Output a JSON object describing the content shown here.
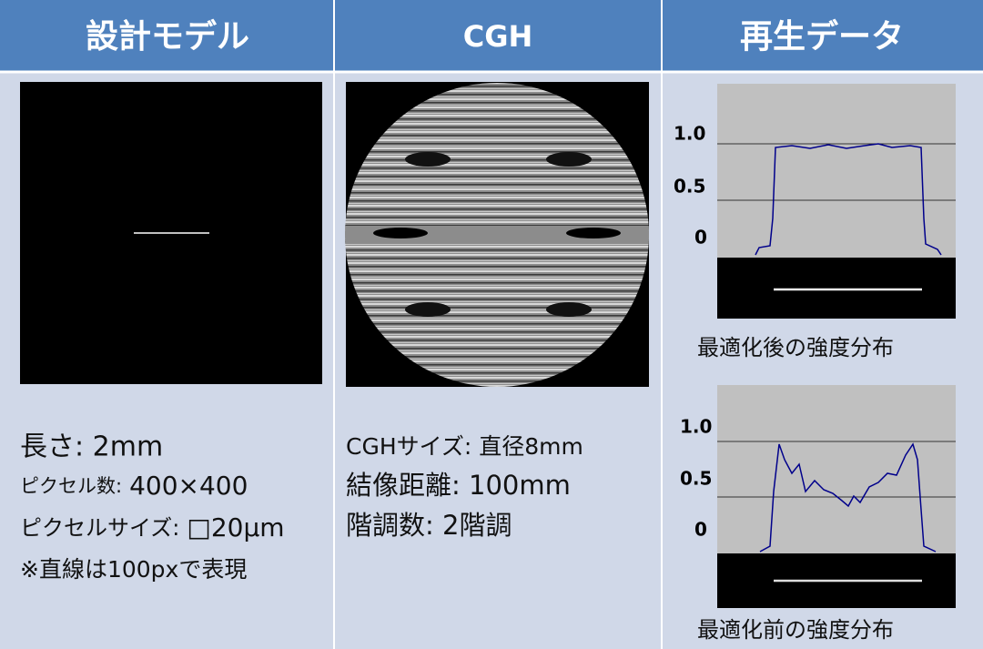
{
  "header": {
    "columns": [
      "設計モデル",
      "CGH",
      "再生データ"
    ]
  },
  "design_model": {
    "lines": [
      {
        "text": "長さ: 2mm"
      },
      {
        "label": "ピクセル数:",
        "value": "400×400"
      },
      {
        "label": "ピクセルサイズ:",
        "value": "□20μm"
      },
      {
        "text": "※直線は100pxで表現"
      }
    ]
  },
  "cgh": {
    "lines": [
      "CGHサイズ: 直径8mm",
      "結像距離: 100mm",
      "階調数: 2階調"
    ]
  },
  "reconstruction": {
    "plots": [
      {
        "yticks": [
          "1.0",
          "0.5",
          "0"
        ],
        "caption": "最適化後の強度分布"
      },
      {
        "yticks": [
          "1.0",
          "0.5",
          "0"
        ],
        "caption": "最適化前の強度分布"
      }
    ]
  }
}
